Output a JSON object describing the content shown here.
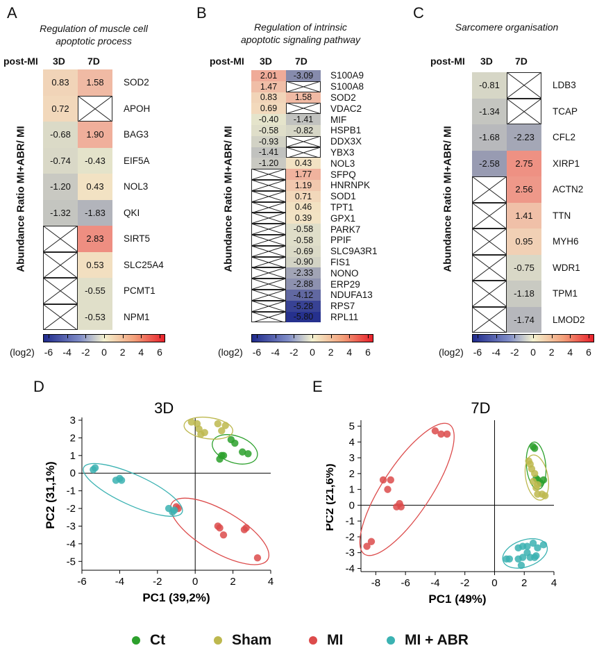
{
  "heatmap_panels": {
    "A": {
      "letter": "A",
      "title_lines": [
        "Regulation of  muscle cell",
        "apoptotic process"
      ],
      "header_label": "post-MI",
      "col_3d": "3D",
      "col_7d": "7D",
      "ylabel": "Abundance Ratio MI+ABR/ MI"
    },
    "B": {
      "letter": "B",
      "title_lines": [
        "Regulation of intrinsic",
        "apoptotic signaling pathway"
      ],
      "header_label": "post-MI",
      "col_3d": "3D",
      "col_7d": "7D",
      "ylabel": "Abundance Ratio MI+ABR/ MI"
    },
    "C": {
      "letter": "C",
      "title_lines": [
        "Sarcomere organisation"
      ],
      "header_label": "post-MI",
      "col_3d": "3D",
      "col_7d": "7D",
      "ylabel": "Abundance Ratio MI+ABR/ MI"
    }
  },
  "colorbar": {
    "ticks": [
      "-6",
      "-4",
      "-2",
      "0",
      "2",
      "4",
      "6"
    ],
    "unit": "(log2)"
  },
  "pca_panels": {
    "D": {
      "letter": "D",
      "title": "3D",
      "xlabel": "PC1 (39,2%)",
      "ylabel": "PC2 (31,1%)"
    },
    "E": {
      "letter": "E",
      "title": "7D",
      "xlabel": "PC1 (49%)",
      "ylabel": "PC2 (21,6%)"
    }
  },
  "legend": [
    {
      "label": "Ct",
      "color": "#2ca02c"
    },
    {
      "label": "Sham",
      "color": "#bdb84e"
    },
    {
      "label": "MI",
      "color": "#dc4b4b"
    },
    {
      "label": "MI + ABR",
      "color": "#3bb2b2"
    }
  ],
  "chart_data": [
    {
      "type": "heatmap",
      "panel": "A",
      "color_scale": {
        "min": -6,
        "max": 6,
        "low": "#1f2a8c",
        "mid": "#f3f1cf",
        "high": "#e8202a"
      },
      "columns": [
        "3D",
        "7D"
      ],
      "rows": [
        {
          "gene": "SOD2",
          "d3": 0.83,
          "d7": 1.58
        },
        {
          "gene": "APOH",
          "d3": 0.72,
          "d7": null
        },
        {
          "gene": "BAG3",
          "d3": -0.68,
          "d7": 1.9
        },
        {
          "gene": "EIF5A",
          "d3": -0.74,
          "d7": -0.43
        },
        {
          "gene": "NOL3",
          "d3": -1.2,
          "d7": 0.43
        },
        {
          "gene": "QKI",
          "d3": -1.32,
          "d7": -1.83
        },
        {
          "gene": "SIRT5",
          "d3": null,
          "d7": 2.83
        },
        {
          "gene": "SLC25A4",
          "d3": null,
          "d7": 0.53
        },
        {
          "gene": "PCMT1",
          "d3": null,
          "d7": -0.55
        },
        {
          "gene": "NPM1",
          "d3": null,
          "d7": -0.53
        }
      ]
    },
    {
      "type": "heatmap",
      "panel": "B",
      "color_scale": {
        "min": -6,
        "max": 6,
        "low": "#1f2a8c",
        "mid": "#f3f1cf",
        "high": "#e8202a"
      },
      "columns": [
        "3D",
        "7D"
      ],
      "rows": [
        {
          "gene": "S100A9",
          "d3": 2.01,
          "d7": -3.09
        },
        {
          "gene": "S100A8",
          "d3": 1.47,
          "d7": null
        },
        {
          "gene": "SOD2",
          "d3": 0.83,
          "d7": 1.58
        },
        {
          "gene": "VDAC2",
          "d3": 0.69,
          "d7": null
        },
        {
          "gene": "MIF",
          "d3": -0.4,
          "d7": -1.41
        },
        {
          "gene": "HSPB1",
          "d3": -0.58,
          "d7": -0.82
        },
        {
          "gene": "DDX3X",
          "d3": -0.93,
          "d7": null
        },
        {
          "gene": "YBX3",
          "d3": -1.41,
          "d7": null
        },
        {
          "gene": "NOL3",
          "d3": -1.2,
          "d7": 0.43
        },
        {
          "gene": "SFPQ",
          "d3": null,
          "d7": 1.77
        },
        {
          "gene": "HNRNPK",
          "d3": null,
          "d7": 1.19
        },
        {
          "gene": "SOD1",
          "d3": null,
          "d7": 0.71
        },
        {
          "gene": "TPT1",
          "d3": null,
          "d7": 0.46
        },
        {
          "gene": "GPX1",
          "d3": null,
          "d7": 0.39
        },
        {
          "gene": "PARK7",
          "d3": null,
          "d7": -0.58
        },
        {
          "gene": "PPIF",
          "d3": null,
          "d7": -0.58
        },
        {
          "gene": "SLC9A3R1",
          "d3": null,
          "d7": -0.69
        },
        {
          "gene": "FIS1",
          "d3": null,
          "d7": -0.9
        },
        {
          "gene": "NONO",
          "d3": null,
          "d7": -2.33
        },
        {
          "gene": "ERP29",
          "d3": null,
          "d7": -2.88
        },
        {
          "gene": "NDUFA13",
          "d3": null,
          "d7": -4.12
        },
        {
          "gene": "RPS7",
          "d3": null,
          "d7": -5.28
        },
        {
          "gene": "RPL11",
          "d3": null,
          "d7": -5.8
        }
      ]
    },
    {
      "type": "heatmap",
      "panel": "C",
      "color_scale": {
        "min": -6,
        "max": 6,
        "low": "#1f2a8c",
        "mid": "#f3f1cf",
        "high": "#e8202a"
      },
      "columns": [
        "3D",
        "7D"
      ],
      "rows": [
        {
          "gene": "LDB3",
          "d3": -0.81,
          "d7": null
        },
        {
          "gene": "TCAP",
          "d3": -1.34,
          "d7": null
        },
        {
          "gene": "CFL2",
          "d3": -1.68,
          "d7": -2.23
        },
        {
          "gene": "XIRP1",
          "d3": -2.58,
          "d7": 2.75
        },
        {
          "gene": "ACTN2",
          "d3": null,
          "d7": 2.56
        },
        {
          "gene": "TTN",
          "d3": null,
          "d7": 1.41
        },
        {
          "gene": "MYH6",
          "d3": null,
          "d7": 0.95
        },
        {
          "gene": "WDR1",
          "d3": null,
          "d7": -0.75
        },
        {
          "gene": "TPM1",
          "d3": null,
          "d7": -1.18
        },
        {
          "gene": "LMOD2",
          "d3": null,
          "d7": -1.74
        }
      ]
    },
    {
      "type": "scatter",
      "panel": "D",
      "title": "3D",
      "xlabel": "PC1 (39,2%)",
      "ylabel": "PC2 (31,1%)",
      "xlim": [
        -6,
        4
      ],
      "ylim": [
        -5.5,
        3
      ],
      "xticks": [
        -6,
        -4,
        -2,
        0,
        2,
        4
      ],
      "yticks": [
        3,
        2,
        1,
        0,
        -1,
        -2,
        -3,
        -4,
        -5
      ],
      "series": [
        {
          "name": "Ct",
          "color": "#2ca02c",
          "points": [
            [
              1.9,
              1.9
            ],
            [
              2.1,
              1.7
            ],
            [
              1.4,
              1.0
            ],
            [
              1.3,
              0.8
            ],
            [
              2.5,
              1.2
            ],
            [
              2.8,
              1.1
            ],
            [
              1.5,
              1.0
            ]
          ],
          "ellipse": {
            "cx": 2.1,
            "cy": 1.35,
            "rx": 1.25,
            "ry": 0.75,
            "angle_deg": -20
          }
        },
        {
          "name": "Sham",
          "color": "#bdb84e",
          "points": [
            [
              -0.2,
              2.9
            ],
            [
              0.2,
              2.5
            ],
            [
              0.5,
              2.3
            ],
            [
              0.3,
              2.2
            ],
            [
              1.2,
              2.8
            ],
            [
              1.6,
              2.7
            ],
            [
              1.4,
              2.4
            ],
            [
              0.1,
              2.8
            ]
          ],
          "ellipse": {
            "cx": 0.7,
            "cy": 2.55,
            "rx": 1.3,
            "ry": 0.6,
            "angle_deg": -8
          }
        },
        {
          "name": "MI",
          "color": "#dc4b4b",
          "points": [
            [
              -1.0,
              -1.9
            ],
            [
              -0.9,
              -2.0
            ],
            [
              1.2,
              -3.0
            ],
            [
              1.3,
              -3.1
            ],
            [
              1.5,
              -3.5
            ],
            [
              2.7,
              -3.1
            ],
            [
              2.6,
              -3.2
            ],
            [
              3.3,
              -4.8
            ]
          ],
          "ellipse": {
            "cx": 1.3,
            "cy": -3.3,
            "rx": 3.0,
            "ry": 1.15,
            "angle_deg": -32
          }
        },
        {
          "name": "MI + ABR",
          "color": "#3bb2b2",
          "points": [
            [
              -5.4,
              0.2
            ],
            [
              -5.3,
              0.3
            ],
            [
              -4.2,
              -0.4
            ],
            [
              -3.9,
              -0.4
            ],
            [
              -4.0,
              -0.3
            ],
            [
              -1.4,
              -2.0
            ],
            [
              -1.1,
              -2.1
            ],
            [
              -1.2,
              -2.2
            ]
          ],
          "ellipse": {
            "cx": -3.3,
            "cy": -0.95,
            "rx": 2.9,
            "ry": 0.85,
            "angle_deg": -26
          }
        }
      ]
    },
    {
      "type": "scatter",
      "panel": "E",
      "title": "7D",
      "xlabel": "PC1 (49%)",
      "ylabel": "PC2 (21,6%)",
      "xlim": [
        -9,
        4
      ],
      "ylim": [
        -4.2,
        5.2
      ],
      "xticks": [
        -8,
        -6,
        -4,
        -2,
        0,
        2,
        4
      ],
      "yticks": [
        5,
        4,
        3,
        2,
        1,
        0,
        -1,
        -2,
        -3,
        -4
      ],
      "series": [
        {
          "name": "Ct",
          "color": "#2ca02c",
          "points": [
            [
              2.6,
              3.7
            ],
            [
              2.7,
              3.6
            ],
            [
              2.9,
              1.6
            ],
            [
              3.1,
              1.4
            ],
            [
              3.3,
              1.6
            ],
            [
              2.8,
              1.7
            ]
          ],
          "ellipse": {
            "cx": 2.8,
            "cy": 2.5,
            "rx": 0.65,
            "ry": 1.5,
            "angle_deg": 5
          }
        },
        {
          "name": "Sham",
          "color": "#bdb84e",
          "points": [
            [
              2.3,
              2.8
            ],
            [
              2.4,
              2.6
            ],
            [
              2.5,
              2.3
            ],
            [
              2.7,
              2.0
            ],
            [
              2.6,
              1.5
            ],
            [
              2.8,
              1.1
            ],
            [
              2.9,
              1.3
            ],
            [
              3.2,
              0.7
            ],
            [
              3.4,
              0.6
            ],
            [
              2.9,
              0.7
            ]
          ],
          "ellipse": {
            "cx": 2.85,
            "cy": 1.75,
            "rx": 0.75,
            "ry": 1.45,
            "angle_deg": 10
          }
        },
        {
          "name": "MI",
          "color": "#dc4b4b",
          "points": [
            [
              -4.0,
              4.7
            ],
            [
              -3.6,
              4.5
            ],
            [
              -3.2,
              4.5
            ],
            [
              -7.5,
              1.6
            ],
            [
              -7.0,
              1.6
            ],
            [
              -7.2,
              1.0
            ],
            [
              -6.4,
              0.1
            ],
            [
              -6.6,
              -0.1
            ],
            [
              -6.3,
              -0.1
            ],
            [
              -8.3,
              -2.3
            ],
            [
              -8.6,
              -2.6
            ]
          ],
          "ellipse": {
            "cx": -5.9,
            "cy": 1.0,
            "rx": 5.0,
            "ry": 1.6,
            "angle_deg": 55
          }
        },
        {
          "name": "MI + ABR",
          "color": "#3bb2b2",
          "points": [
            [
              0.8,
              -3.4
            ],
            [
              1.0,
              -3.4
            ],
            [
              1.6,
              -2.7
            ],
            [
              1.9,
              -2.6
            ],
            [
              2.2,
              -2.6
            ],
            [
              2.6,
              -2.4
            ],
            [
              2.9,
              -2.7
            ],
            [
              3.3,
              -2.5
            ],
            [
              1.6,
              -3.4
            ],
            [
              1.9,
              -3.3
            ],
            [
              2.4,
              -3.3
            ],
            [
              2.7,
              -3.3
            ],
            [
              2.8,
              -3.2
            ],
            [
              1.8,
              -3.8
            ],
            [
              2.2,
              -3.0
            ]
          ],
          "ellipse": {
            "cx": 2.05,
            "cy": -3.05,
            "rx": 1.55,
            "ry": 0.85,
            "angle_deg": 18
          }
        }
      ]
    }
  ]
}
